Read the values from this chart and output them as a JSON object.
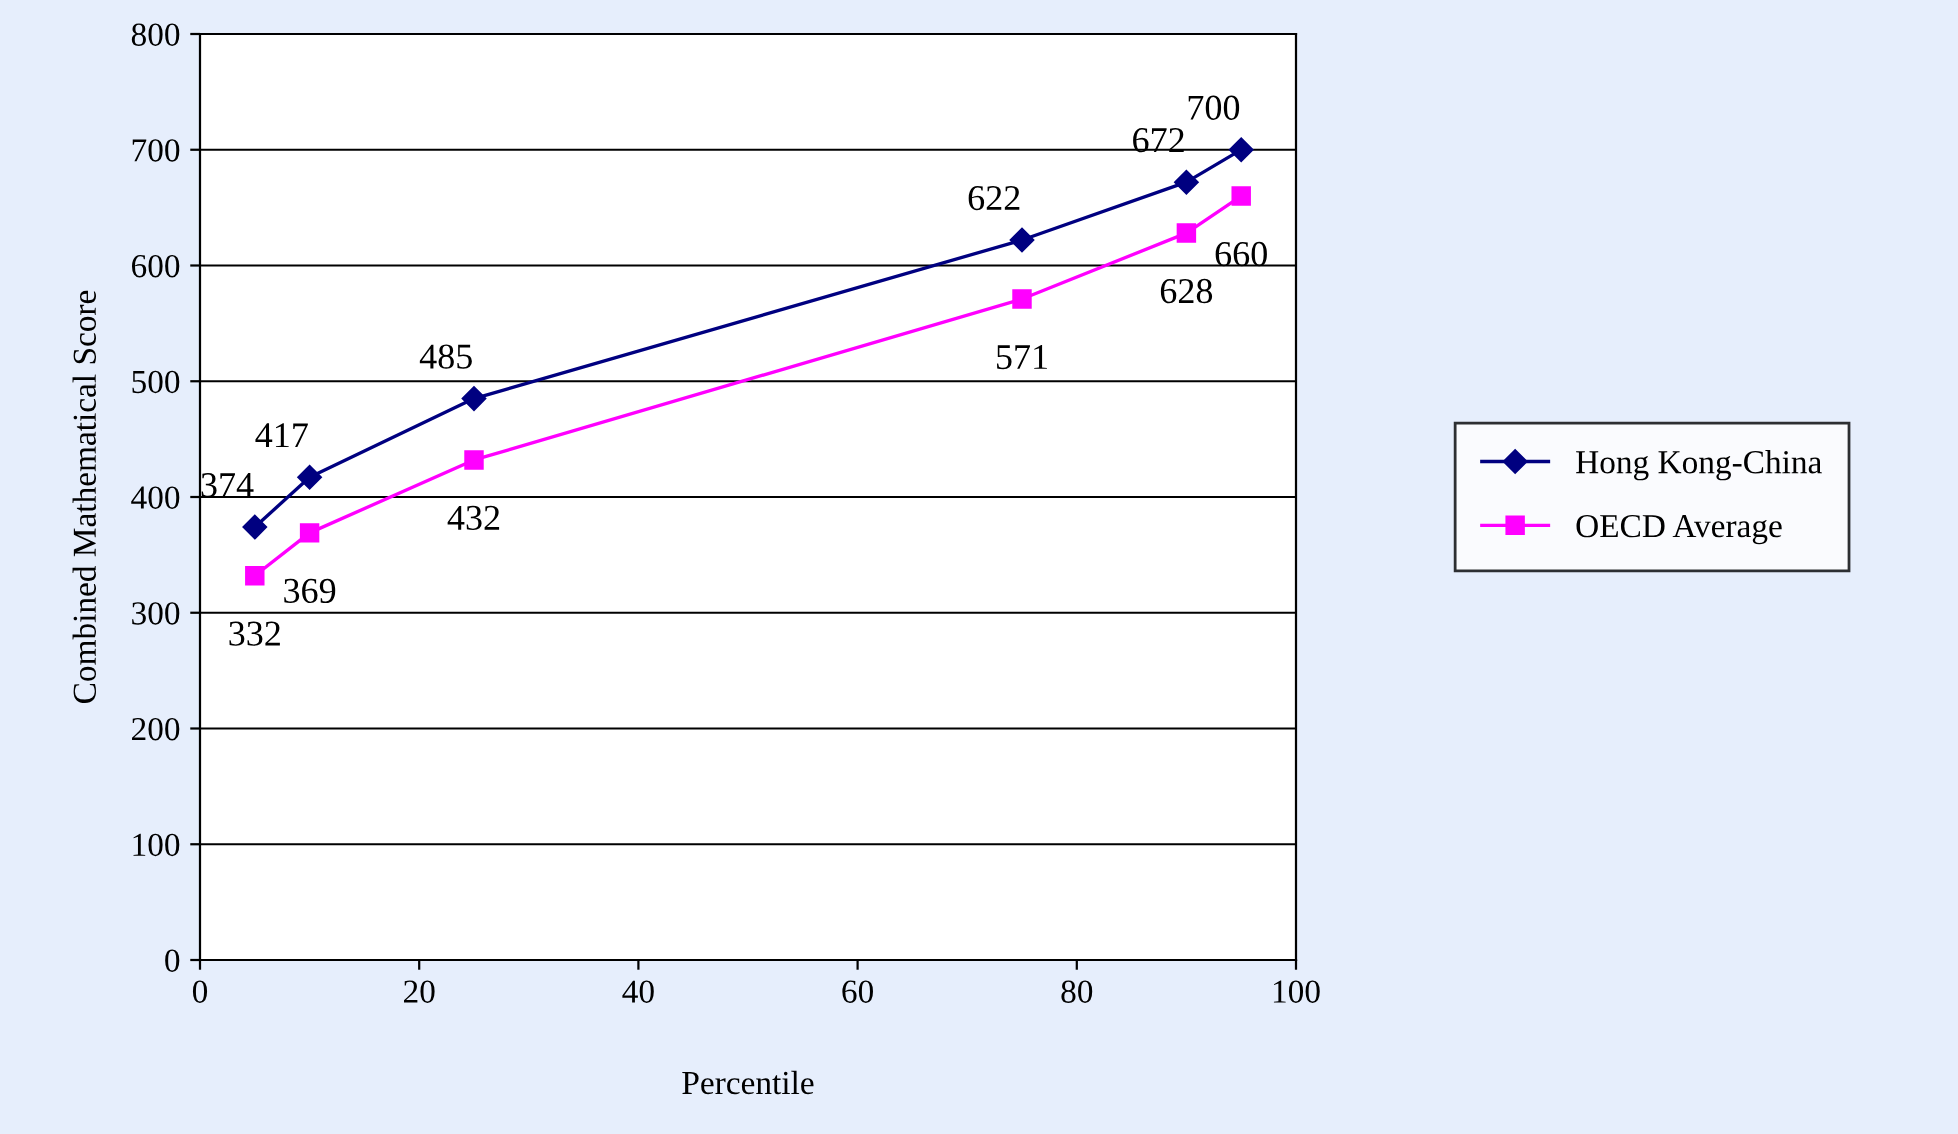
{
  "chart_data": {
    "type": "line",
    "xlabel": "Percentile",
    "ylabel": "Combined Mathematical Score",
    "x": [
      5,
      10,
      25,
      75,
      90,
      95
    ],
    "series": [
      {
        "name": "Hong Kong-China",
        "color": "#000080",
        "marker": "diamond",
        "values": [
          374,
          417,
          485,
          622,
          672,
          700
        ]
      },
      {
        "name": "OECD Average",
        "color": "#ff00ff",
        "marker": "square",
        "values": [
          332,
          369,
          432,
          571,
          628,
          660
        ]
      }
    ],
    "xlim": [
      0,
      100
    ],
    "xticks": [
      0,
      20,
      40,
      60,
      80,
      100
    ],
    "ylim": [
      0,
      800
    ],
    "yticks": [
      0,
      100,
      200,
      300,
      400,
      500,
      600,
      700,
      800
    ],
    "grid": "y",
    "legend": "right",
    "data_labels": true,
    "line_style": "solid"
  }
}
